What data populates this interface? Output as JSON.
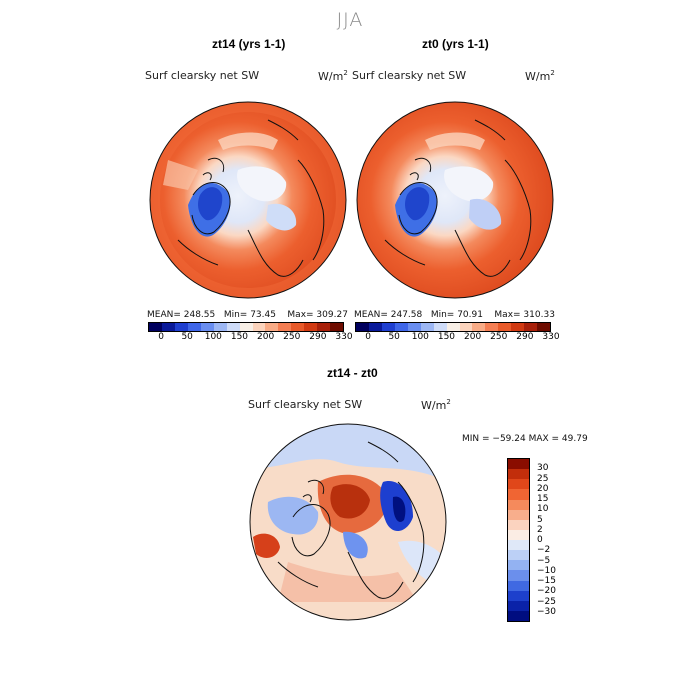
{
  "figure": {
    "season_title": "JJA"
  },
  "panels": [
    {
      "title": "zt14 (yrs 1-1)",
      "variable": "Surf clearsky net SW",
      "units": "W/m",
      "units_sup": "2",
      "mean": "MEAN= 248.55",
      "min": "Min=  73.45",
      "max": "Max= 309.27"
    },
    {
      "title": "zt0 (yrs 1-1)",
      "variable": "Surf clearsky net SW",
      "units": "W/m",
      "units_sup": "2",
      "mean": "MEAN= 247.58",
      "min": "Min=  70.91",
      "max": "Max= 310.33"
    }
  ],
  "abs_colorbar": {
    "tick_labels": [
      "0",
      "50",
      "100",
      "150",
      "200",
      "250",
      "290",
      "330"
    ],
    "colors": [
      "#00005e",
      "#0a1a9a",
      "#1f3fd0",
      "#3f66e8",
      "#6a8ef0",
      "#9db7f4",
      "#cfdcf8",
      "#f8efe6",
      "#fbd3bc",
      "#f8ab86",
      "#f47e53",
      "#e85a2a",
      "#d13a12",
      "#a8200a",
      "#6e0c00"
    ]
  },
  "diff_panel": {
    "title": "zt14 - zt0",
    "variable": "Surf clearsky net SW",
    "units": "W/m",
    "units_sup": "2",
    "minmax": "MIN = −59.24  MAX =  49.79",
    "tick_labels": [
      "30",
      "25",
      "20",
      "15",
      "10",
      "5",
      "2",
      "0",
      "−2",
      "−5",
      "−10",
      "−15",
      "−20",
      "−25",
      "−30"
    ],
    "colors": [
      "#8a0d00",
      "#c22e0b",
      "#e0471a",
      "#f06533",
      "#f58a5c",
      "#f8ae8c",
      "#fbd3bf",
      "#fbede4",
      "#dfe8f8",
      "#bcd0f6",
      "#93b2f2",
      "#6b8fec",
      "#4069e2",
      "#1d40cc",
      "#0a22a8",
      "#000d80"
    ]
  }
}
